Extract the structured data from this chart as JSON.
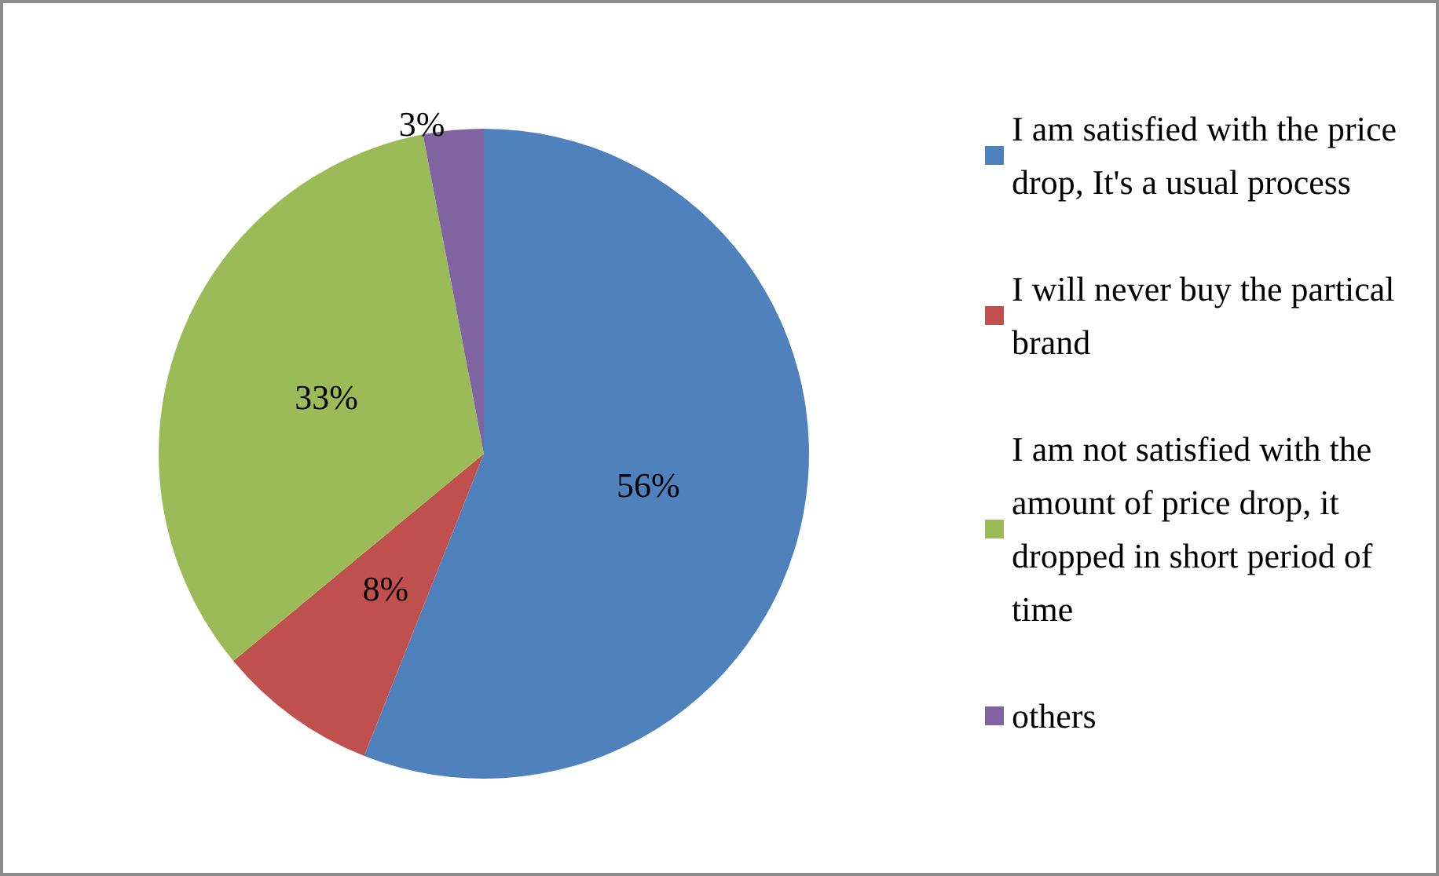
{
  "chart_data": {
    "type": "pie",
    "categories": [
      "I am satisfied with the price drop, It's a usual process",
      "I will never buy the partical brand",
      "I am not satisfied with the amount of price drop, it dropped in short period of time",
      "others"
    ],
    "values": [
      56,
      8,
      33,
      3
    ],
    "colors": [
      "#4f81bd",
      "#c0504d",
      "#9bbb59",
      "#8064a2"
    ],
    "value_labels": [
      "56%",
      "8%",
      "33%",
      "3%"
    ],
    "legend": "right"
  }
}
